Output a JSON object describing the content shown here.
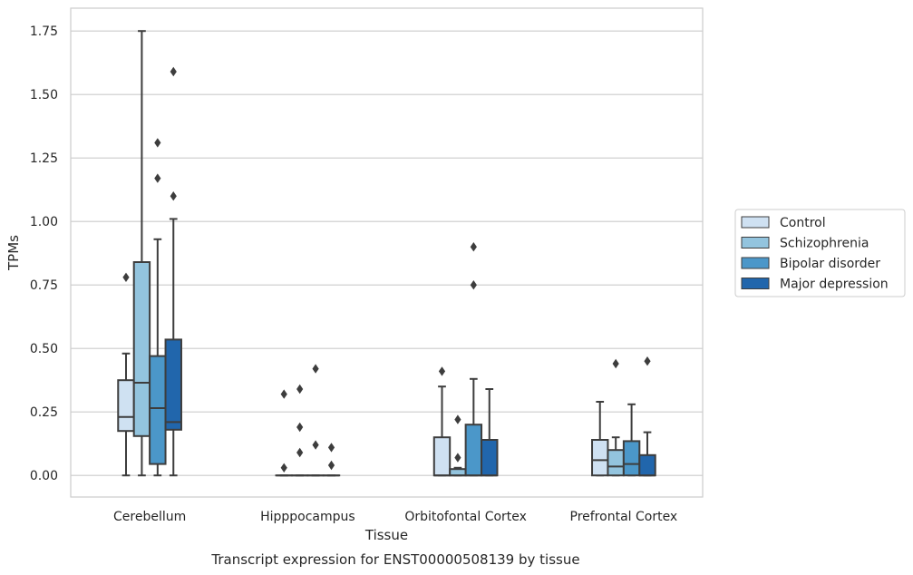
{
  "chart_data": {
    "type": "box",
    "title": "",
    "caption": "Transcript expression for ENST00000508139 by tissue",
    "xlabel": "Tissue",
    "ylabel": "TPMs",
    "ylim": [
      -0.085,
      1.84
    ],
    "yticks": [
      0.0,
      0.25,
      0.5,
      0.75,
      1.0,
      1.25,
      1.5,
      1.75
    ],
    "ytick_labels": [
      "0.00",
      "0.25",
      "0.50",
      "0.75",
      "1.00",
      "1.25",
      "1.50",
      "1.75"
    ],
    "grid": "horizontal",
    "legend_position": "outside-right",
    "categories": [
      "Cerebellum",
      "Hipppocampus",
      "Orbitofontal Cortex",
      "Prefrontal Cortex"
    ],
    "series": [
      {
        "name": "Control",
        "color": "#cfe1f2",
        "boxes": [
          {
            "whisker_low": 0.0,
            "q1": 0.175,
            "median": 0.23,
            "q3": 0.375,
            "whisker_high": 0.48,
            "outliers": [
              0.78
            ]
          },
          {
            "whisker_low": 0.0,
            "q1": 0.0,
            "median": 0.0,
            "q3": 0.0,
            "whisker_high": 0.0,
            "outliers": [
              0.03,
              0.32
            ]
          },
          {
            "whisker_low": 0.0,
            "q1": 0.0,
            "median": 0.0,
            "q3": 0.15,
            "whisker_high": 0.35,
            "outliers": [
              0.41
            ]
          },
          {
            "whisker_low": 0.0,
            "q1": 0.0,
            "median": 0.06,
            "q3": 0.14,
            "whisker_high": 0.29,
            "outliers": []
          }
        ]
      },
      {
        "name": "Schizophrenia",
        "color": "#93c4de",
        "boxes": [
          {
            "whisker_low": 0.0,
            "q1": 0.155,
            "median": 0.365,
            "q3": 0.84,
            "whisker_high": 1.75,
            "outliers": []
          },
          {
            "whisker_low": 0.0,
            "q1": 0.0,
            "median": 0.0,
            "q3": 0.0,
            "whisker_high": 0.0,
            "outliers": [
              0.09,
              0.19,
              0.34
            ]
          },
          {
            "whisker_low": 0.0,
            "q1": 0.0,
            "median": 0.0,
            "q3": 0.025,
            "whisker_high": 0.03,
            "outliers": [
              0.07,
              0.22
            ]
          },
          {
            "whisker_low": 0.0,
            "q1": 0.0,
            "median": 0.035,
            "q3": 0.1,
            "whisker_high": 0.15,
            "outliers": [
              0.44
            ]
          }
        ]
      },
      {
        "name": "Bipolar disorder",
        "color": "#4b97c9",
        "boxes": [
          {
            "whisker_low": 0.0,
            "q1": 0.045,
            "median": 0.265,
            "q3": 0.47,
            "whisker_high": 0.93,
            "outliers": [
              1.17,
              1.31
            ]
          },
          {
            "whisker_low": 0.0,
            "q1": 0.0,
            "median": 0.0,
            "q3": 0.0,
            "whisker_high": 0.0,
            "outliers": [
              0.12,
              0.42
            ]
          },
          {
            "whisker_low": 0.0,
            "q1": 0.0,
            "median": 0.0,
            "q3": 0.2,
            "whisker_high": 0.38,
            "outliers": [
              0.75,
              0.9
            ]
          },
          {
            "whisker_low": 0.0,
            "q1": 0.0,
            "median": 0.045,
            "q3": 0.135,
            "whisker_high": 0.28,
            "outliers": []
          }
        ]
      },
      {
        "name": "Major depression",
        "color": "#2166ac",
        "boxes": [
          {
            "whisker_low": 0.0,
            "q1": 0.18,
            "median": 0.21,
            "q3": 0.535,
            "whisker_high": 1.01,
            "outliers": [
              1.1,
              1.59
            ]
          },
          {
            "whisker_low": 0.0,
            "q1": 0.0,
            "median": 0.0,
            "q3": 0.0,
            "whisker_high": 0.0,
            "outliers": [
              0.04,
              0.11
            ]
          },
          {
            "whisker_low": 0.0,
            "q1": 0.0,
            "median": 0.0,
            "q3": 0.14,
            "whisker_high": 0.34,
            "outliers": []
          },
          {
            "whisker_low": 0.0,
            "q1": 0.0,
            "median": 0.0,
            "q3": 0.08,
            "whisker_high": 0.17,
            "outliers": [
              0.45
            ]
          }
        ]
      }
    ]
  }
}
